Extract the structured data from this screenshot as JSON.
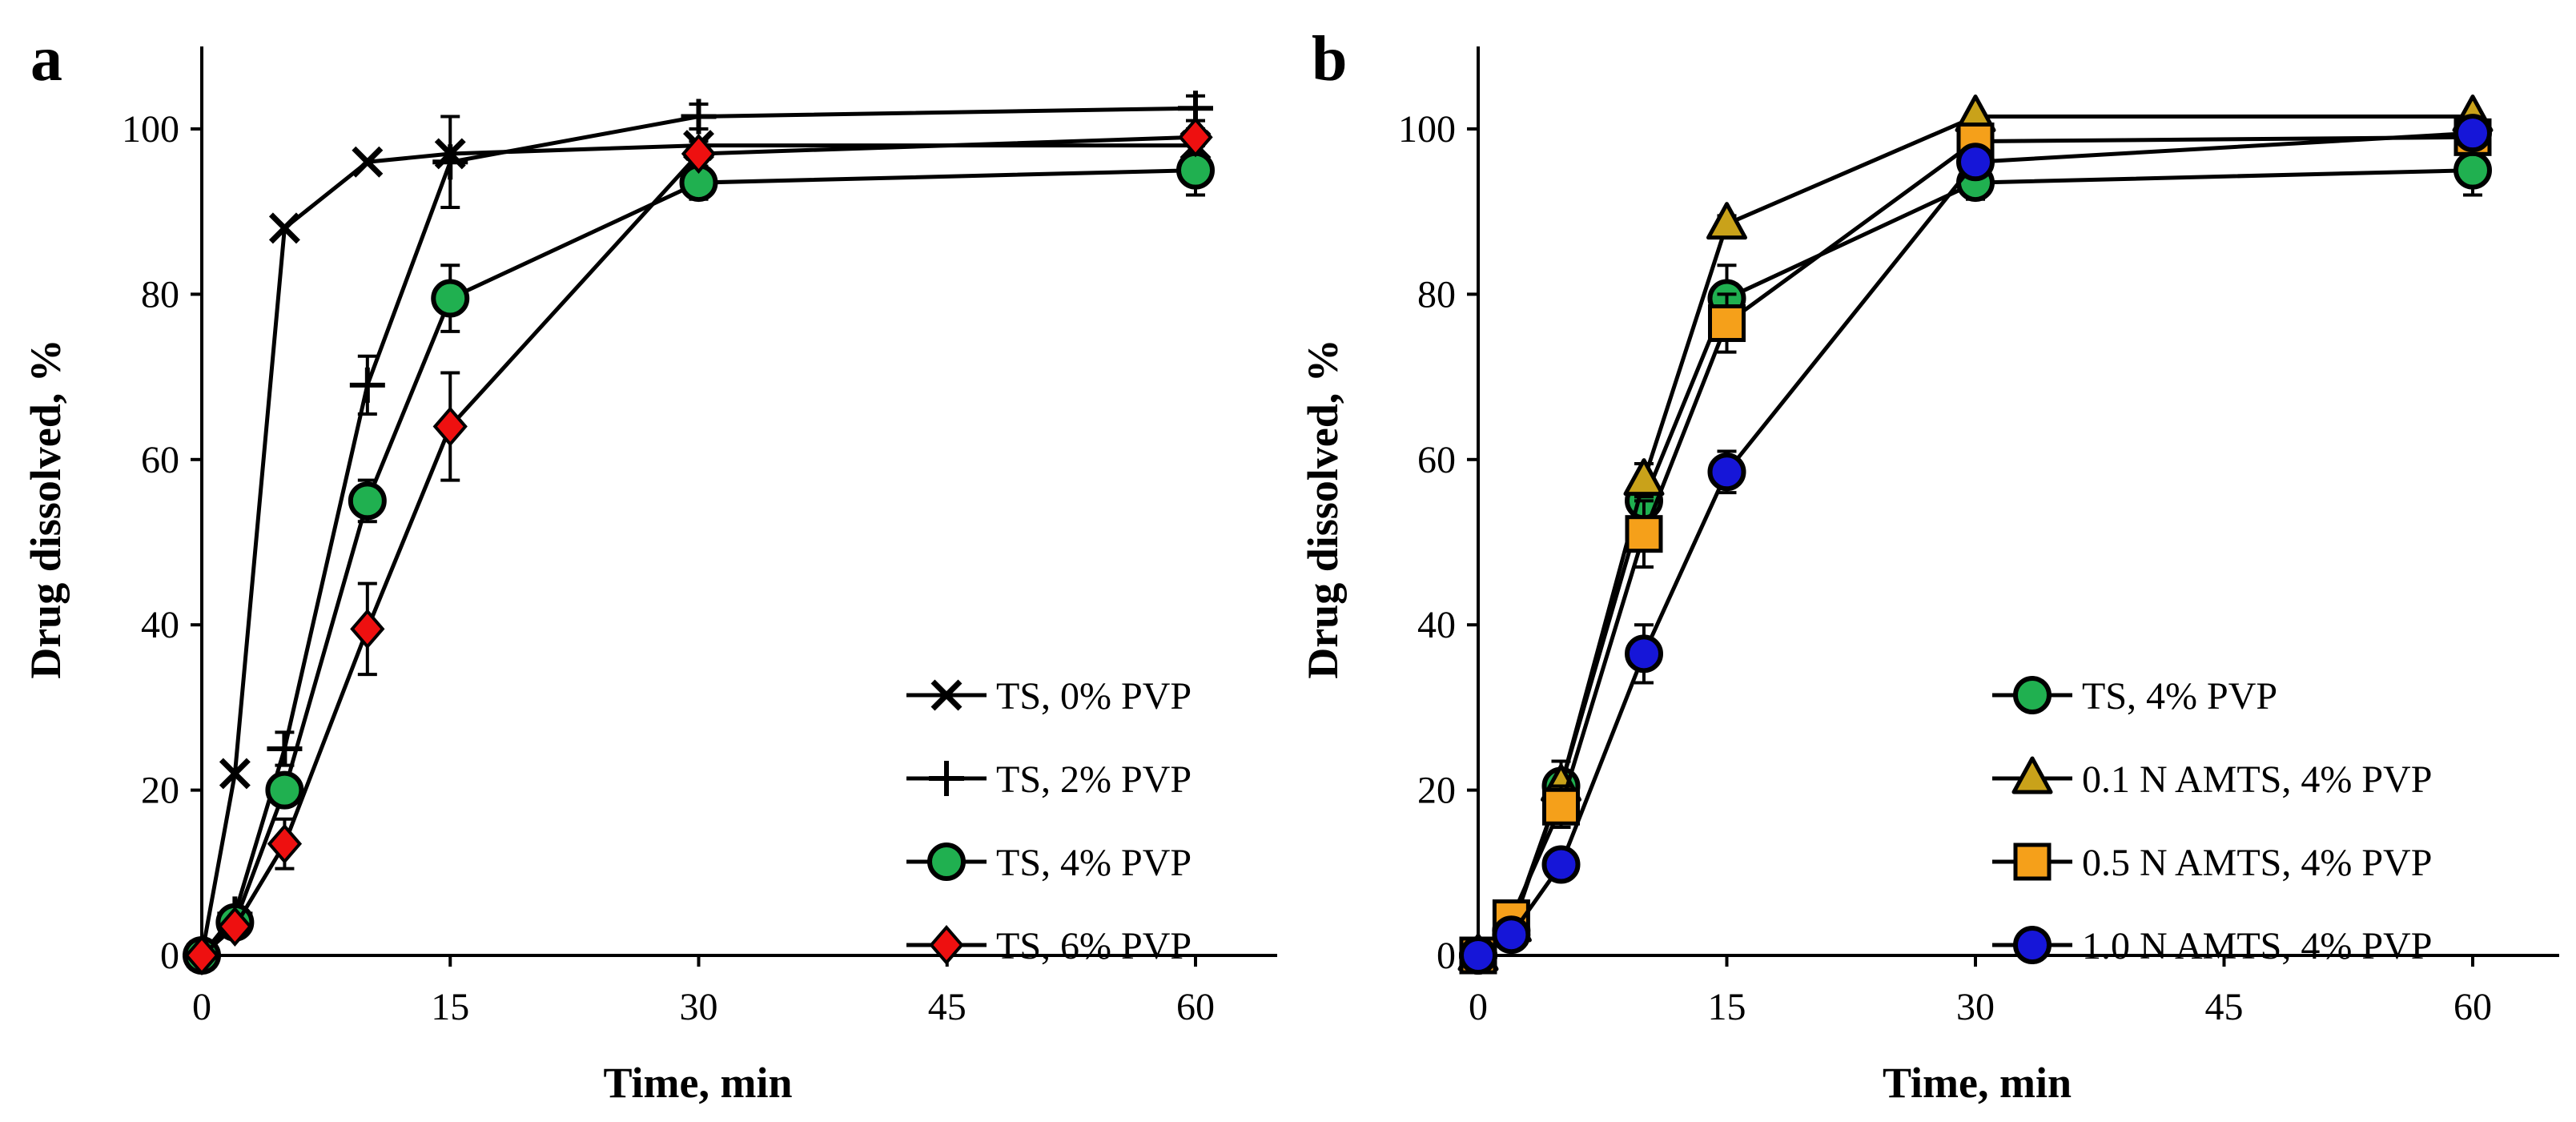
{
  "chart_data": [
    {
      "panel": "a",
      "type": "line",
      "xlabel": "Time, min",
      "ylabel": "Drug dissolved, %",
      "xlim": [
        0,
        65
      ],
      "ylim": [
        0,
        110
      ],
      "xticks": [
        0,
        15,
        30,
        45,
        60
      ],
      "yticks": [
        0,
        20,
        40,
        60,
        80,
        100
      ],
      "xtick_labels": [
        "0",
        "15",
        "30",
        "45",
        "60"
      ],
      "ytick_labels": [
        "0",
        "20",
        "40",
        "60",
        "80",
        "100"
      ],
      "legend_position": "bottom-right",
      "x": [
        0,
        2,
        5,
        10,
        15,
        30,
        60
      ],
      "series": [
        {
          "name": "TS, 0% PVP",
          "marker": "x",
          "color": "#000000",
          "values": [
            0,
            22,
            88,
            96,
            97,
            98,
            98
          ],
          "errors": [
            0,
            0,
            0,
            0,
            0,
            0,
            0
          ]
        },
        {
          "name": "TS, 2% PVP",
          "marker": "plus",
          "color": "#000000",
          "values": [
            0,
            5,
            25,
            69,
            96,
            101.5,
            102.5
          ],
          "errors": [
            0,
            0.5,
            2,
            3.5,
            5.5,
            1.5,
            1.5
          ]
        },
        {
          "name": "TS, 4% PVP",
          "marker": "circle",
          "color": "#20b050",
          "values": [
            0,
            4,
            20,
            55,
            79.5,
            93.5,
            95
          ],
          "errors": [
            0,
            0.5,
            1.5,
            2.5,
            4,
            2,
            3
          ]
        },
        {
          "name": "TS, 6% PVP",
          "marker": "diamond",
          "color": "#ee1010",
          "values": [
            0,
            3.5,
            13.5,
            39.5,
            64,
            97,
            99
          ],
          "errors": [
            0,
            0.5,
            3,
            5.5,
            6.5,
            1.5,
            1
          ]
        }
      ]
    },
    {
      "panel": "b",
      "type": "line",
      "xlabel": "Time, min",
      "ylabel": "Drug dissolved, %",
      "xlim": [
        0,
        65
      ],
      "ylim": [
        0,
        110
      ],
      "xticks": [
        0,
        15,
        30,
        45,
        60
      ],
      "yticks": [
        0,
        20,
        40,
        60,
        80,
        100
      ],
      "xtick_labels": [
        "0",
        "15",
        "30",
        "45",
        "60"
      ],
      "ytick_labels": [
        "0",
        "20",
        "40",
        "60",
        "80",
        "100"
      ],
      "legend_position": "bottom-right",
      "x": [
        0,
        2,
        5,
        10,
        15,
        30,
        60
      ],
      "series": [
        {
          "name": "TS, 4% PVP",
          "marker": "circle",
          "color": "#20b050",
          "values": [
            0,
            3,
            20.5,
            55,
            79.5,
            93.5,
            95
          ],
          "errors": [
            0,
            0.5,
            1.5,
            2.5,
            4,
            2,
            3
          ]
        },
        {
          "name": "0.1 N AMTS, 4% PVP",
          "marker": "triangle",
          "color": "#c9a21a",
          "values": [
            0,
            3.5,
            20.5,
            57.5,
            88.5,
            101.5,
            101.5
          ],
          "errors": [
            0,
            0.5,
            3,
            2,
            1,
            0.5,
            0.5
          ]
        },
        {
          "name": "0.5 N AMTS, 4% PVP",
          "marker": "square",
          "color": "#f5a01a",
          "values": [
            0,
            4.5,
            18,
            51,
            76.5,
            98.5,
            99
          ],
          "errors": [
            0,
            0.5,
            2.5,
            4,
            3.5,
            1,
            1
          ]
        },
        {
          "name": "1.0 N AMTS, 4% PVP",
          "marker": "circle",
          "color": "#1616d8",
          "values": [
            0,
            2.5,
            11,
            36.5,
            58.5,
            96,
            99.5
          ],
          "errors": [
            0,
            0.5,
            1,
            3.5,
            2.5,
            1.5,
            1
          ]
        }
      ]
    }
  ]
}
